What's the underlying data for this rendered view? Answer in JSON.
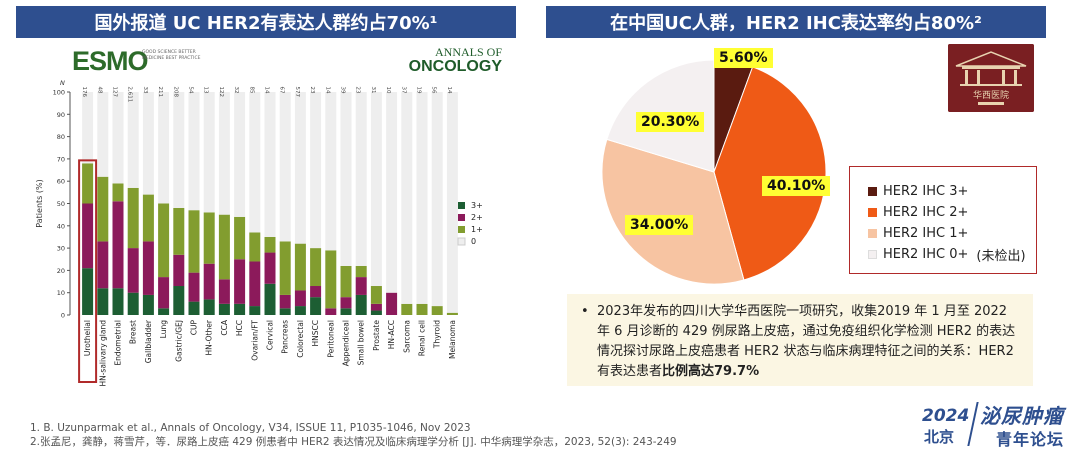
{
  "banners": {
    "left": "国外报道 UC HER2有表达人群约占70%¹",
    "right": "在中国UC人群，HER2 IHC表达率约占80%²"
  },
  "logos": {
    "esmo": "ESMO",
    "esmo_tagline": "GOOD SCIENCE BETTER MEDICINE BEST PRACTICE",
    "annals_top": "ANNALS OF",
    "annals_main": "ONCOLOGY"
  },
  "colors": {
    "three_plus": "#1d5e33",
    "two_plus": "#8c1a5b",
    "one_plus": "#829d2f",
    "zero": "#eeeeee",
    "highlight_box": "#b02a2a",
    "banner": "#2e4f8f",
    "pie_three": "#5a1b10",
    "pie_two": "#ef5a16",
    "pie_one": "#f7c4a2",
    "pie_zero": "#f4f0f1"
  },
  "chart_data": [
    {
      "type": "bar",
      "stacked": true,
      "ylabel": "Patients (%)",
      "n_label": "N",
      "ylim": [
        0,
        100
      ],
      "yticks": [
        0,
        10,
        20,
        30,
        40,
        50,
        60,
        70,
        80,
        90,
        100
      ],
      "highlighted_category": "Urothelial",
      "categories": [
        "Urothelial",
        "HN-salivary gland",
        "Endometrial",
        "Breast",
        "Gallbladder",
        "Lung",
        "Gastric/GEJ",
        "CUP",
        "HN-Other",
        "CCA",
        "HCC",
        "Ovarian/FT",
        "Cervical",
        "Pancreas",
        "Colorectal",
        "HNSCC",
        "Peritoneal",
        "Appendiceal",
        "Small bowel",
        "Prostate",
        "HN-ACC",
        "Sarcoma",
        "Renal cell",
        "Thyroid",
        "Melanoma"
      ],
      "n": [
        "176",
        "48",
        "127",
        "2,611",
        "33",
        "211",
        "208",
        "54",
        "13",
        "122",
        "32",
        "85",
        "14",
        "67",
        "577",
        "23",
        "14",
        "39",
        "23",
        "31",
        "10",
        "37",
        "19",
        "56",
        "14"
      ],
      "series": [
        {
          "name": "3+",
          "values": [
            21,
            12,
            12,
            10,
            9,
            3,
            13,
            6,
            7,
            5,
            5,
            4,
            14,
            3,
            4,
            8,
            0,
            3,
            9,
            2,
            0,
            0,
            0,
            0,
            0
          ]
        },
        {
          "name": "2+",
          "values": [
            29,
            21,
            39,
            20,
            24,
            14,
            14,
            13,
            16,
            11,
            20,
            20,
            14,
            6,
            7,
            5,
            3,
            5,
            8,
            3,
            10,
            0,
            0,
            0,
            0
          ]
        },
        {
          "name": "1+",
          "values": [
            18,
            29,
            8,
            27,
            21,
            33,
            21,
            28,
            23,
            29,
            19,
            13,
            7,
            24,
            21,
            17,
            26,
            14,
            5,
            8,
            0,
            5,
            5,
            4,
            1
          ]
        },
        {
          "name": "0",
          "values": [
            32,
            38,
            41,
            43,
            46,
            50,
            52,
            53,
            54,
            55,
            56,
            63,
            65,
            67,
            68,
            70,
            71,
            78,
            78,
            87,
            90,
            95,
            95,
            96,
            99
          ]
        }
      ],
      "legend": [
        "3+",
        "2+",
        "1+",
        "0"
      ]
    },
    {
      "type": "pie",
      "labels": [
        "HER2 IHC 3+",
        "HER2 IHC 2+",
        "HER2 IHC 1+",
        "HER2 IHC 0+"
      ],
      "values": [
        5.6,
        40.1,
        34.0,
        20.3
      ],
      "value_labels": [
        "5.60%",
        "40.10%",
        "34.00%",
        "20.30%"
      ],
      "legend_note": "(未检出)"
    }
  ],
  "note": {
    "bullet": "•",
    "text": "2023年发布的四川大学华西医院一项研究，收集2019 年 1 月至 2022 年 6 月诊断的 429 例尿路上皮癌，通过免疫组织化学检测 HER2 的表达情况探讨尿路上皮癌患者 HER2 状态与临床病理特征之间的关系：HER2有表达患者",
    "highlight": "比例高达79.7%"
  },
  "references": [
    "1. B. Uzunparmak et al., Annals of Oncology, V34, ISSUE 11, P1035-1046, Nov 2023",
    "2.张孟尼，龚静，蒋雪芹，等．尿路上皮癌 429 例患者中 HER2 表达情况及临床病理学分析 [J]. 中华病理学杂志，2023, 52(3): 243-249"
  ],
  "forum": {
    "year": "2024",
    "city": "北京",
    "title1": "泌尿肿瘤",
    "title2": "青年论坛"
  },
  "logo_text": "华西医院"
}
